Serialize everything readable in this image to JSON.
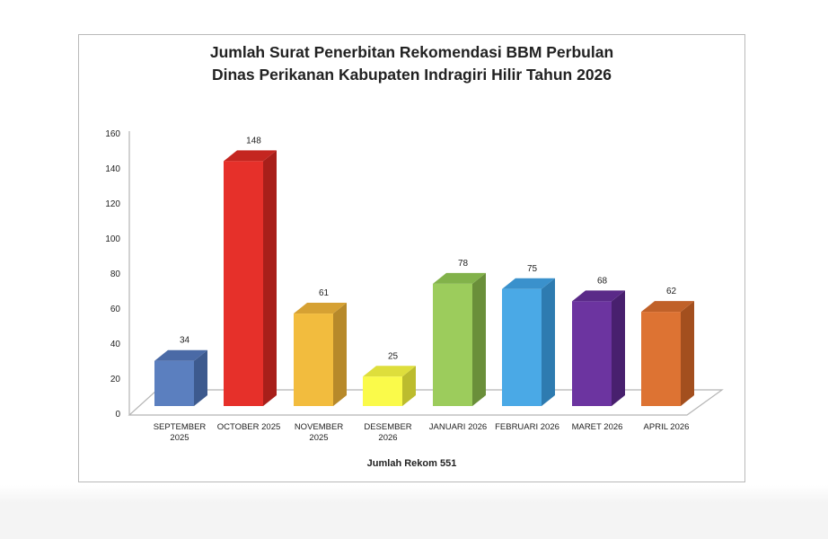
{
  "chart_data": {
    "type": "bar",
    "variant": "3d-column",
    "title": "Jumlah Surat Penerbitan Rekomendasi BBM Perbulan Dinas Perikanan Kabupaten Indragiri Hilir Tahun 2026",
    "title_line1": "Jumlah Surat Penerbitan Rekomendasi BBM Perbulan",
    "title_line2": "Dinas Perikanan Kabupaten Indragiri Hilir Tahun 2026",
    "categories": [
      "SEPTEMBER 2025",
      "OCTOBER 2025",
      "NOVEMBER 2025",
      "DESEMBER 2026",
      "JANUARI 2026",
      "FEBRUARI 2026",
      "MARET 2026",
      "APRIL 2026"
    ],
    "category_lines": [
      [
        "SEPTEMBER",
        "2025"
      ],
      [
        "OCTOBER 2025",
        ""
      ],
      [
        "NOVEMBER",
        "2025"
      ],
      [
        "DESEMBER",
        "2026"
      ],
      [
        "JANUARI 2026",
        ""
      ],
      [
        "FEBRUARI 2026",
        ""
      ],
      [
        "MARET 2026",
        ""
      ],
      [
        "APRIL 2026",
        ""
      ]
    ],
    "values": [
      34,
      148,
      61,
      25,
      78,
      75,
      68,
      62
    ],
    "colors": [
      "#5b7fbf",
      "#e6302a",
      "#f2bc3e",
      "#fafa4a",
      "#9ccc5c",
      "#4aa9e6",
      "#6c34a0",
      "#dd7333"
    ],
    "side_colors": [
      "#3d5a8e",
      "#a81f1a",
      "#b7892a",
      "#bcbc2e",
      "#6a8f3a",
      "#2e7bb0",
      "#48206e",
      "#a34f1e"
    ],
    "top_colors": [
      "#4a6aa6",
      "#c42620",
      "#d6a133",
      "#dede3c",
      "#82b24a",
      "#3a91cc",
      "#5a2a88",
      "#c06129"
    ],
    "xlabel": "Jumlah Rekom 551",
    "ylabel": "",
    "ylim": [
      0,
      160
    ],
    "yticks": [
      0,
      20,
      40,
      60,
      80,
      100,
      120,
      140,
      160
    ],
    "data_labels": true,
    "legend": "none",
    "grid": false,
    "total": 551
  }
}
